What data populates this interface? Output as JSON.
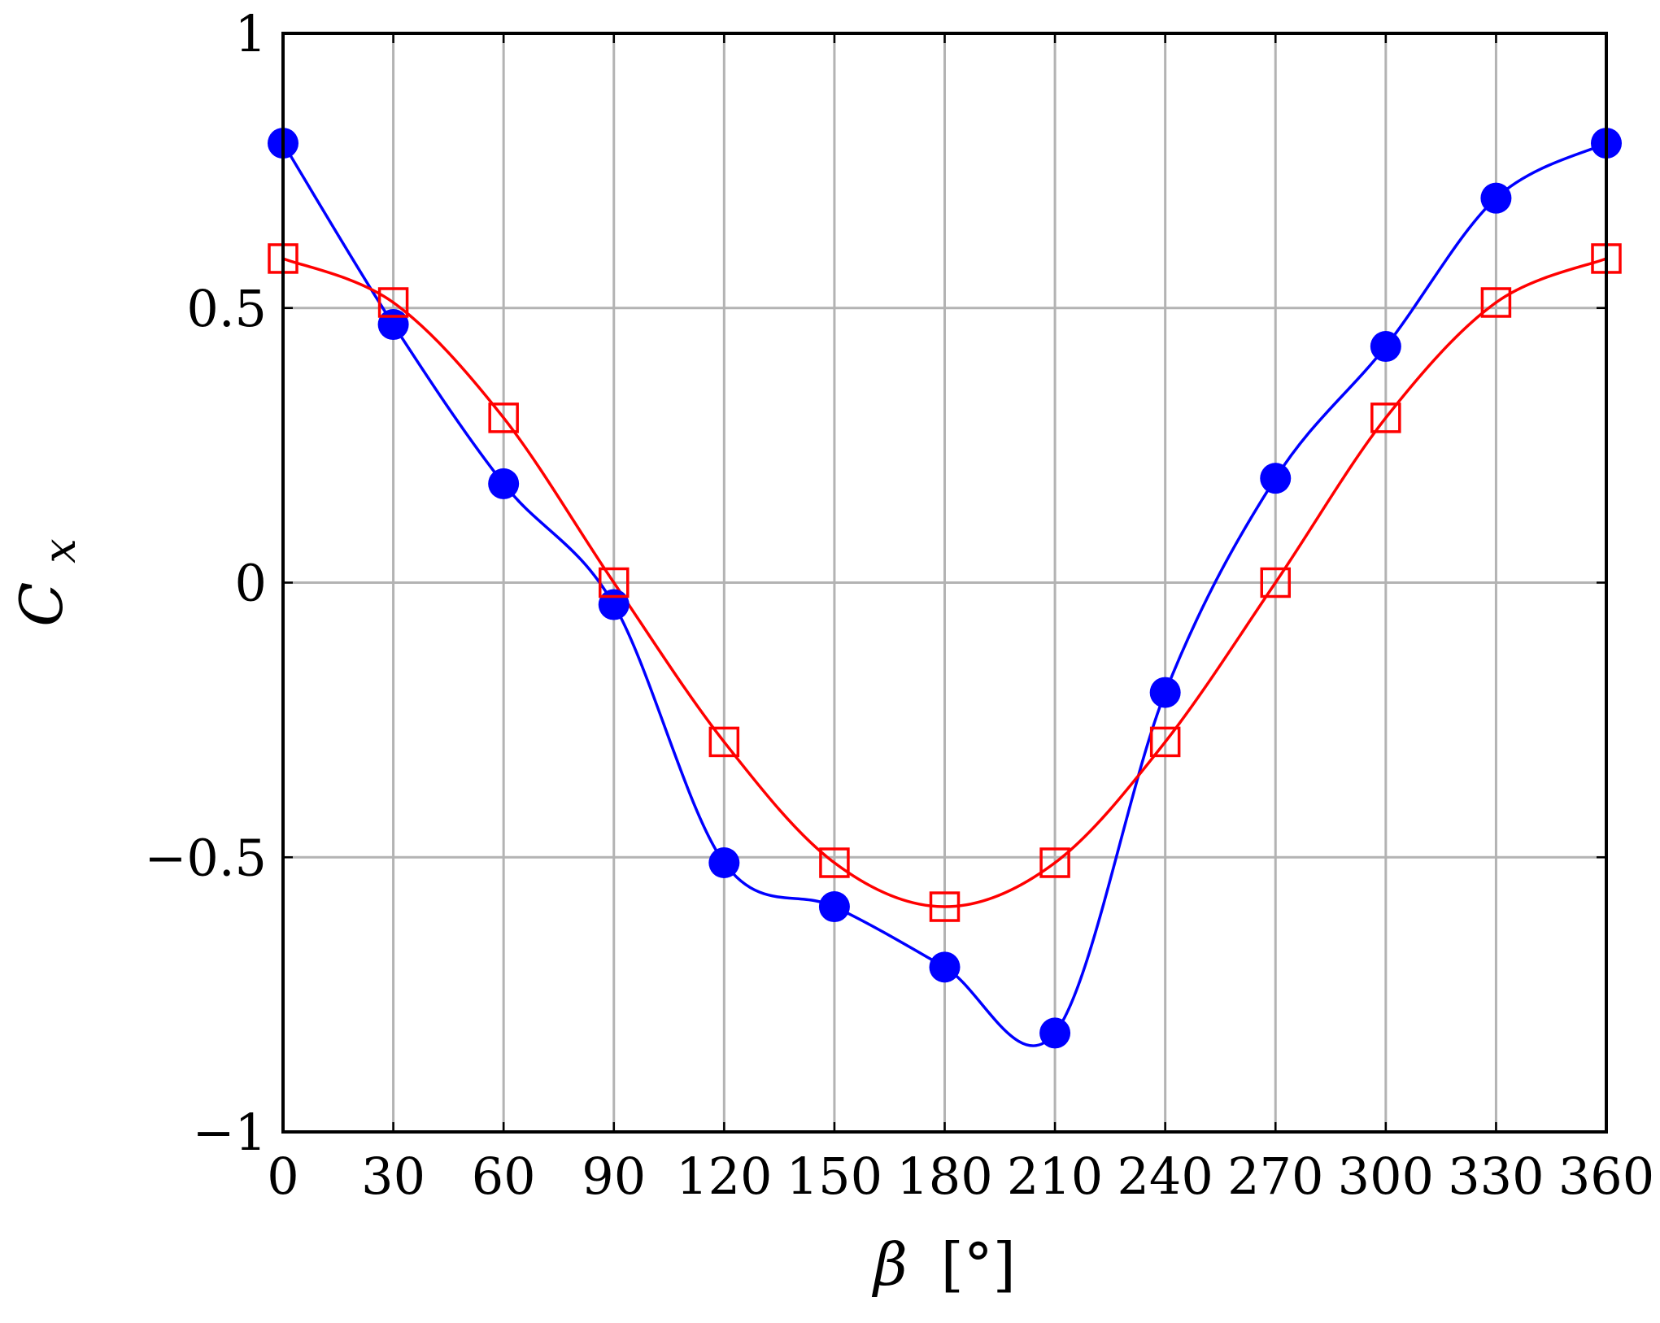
{
  "chart_data": {
    "type": "line",
    "title": "",
    "xlabel": {
      "symbol": "β",
      "unit": "[°]"
    },
    "ylabel": {
      "symbol": "C",
      "subscript": "x"
    },
    "xlim": [
      0,
      360
    ],
    "ylim": [
      -1,
      1
    ],
    "x_ticks": [
      0,
      30,
      60,
      90,
      120,
      150,
      180,
      210,
      240,
      270,
      300,
      330,
      360
    ],
    "x_tick_labels": [
      "0",
      "30",
      "60",
      "90",
      "120",
      "150",
      "180",
      "210",
      "240",
      "270",
      "300",
      "330",
      "360"
    ],
    "y_ticks": [
      -1,
      -0.5,
      0,
      0.5,
      1
    ],
    "y_tick_labels": [
      "−1",
      "−0.5",
      "0",
      "0.5",
      "1"
    ],
    "grid": true,
    "x": [
      0,
      30,
      60,
      90,
      120,
      150,
      180,
      210,
      240,
      270,
      300,
      330,
      360
    ],
    "series": [
      {
        "color": "#0000ff",
        "marker": "filled-circle",
        "smooth": true,
        "values": [
          0.8,
          0.47,
          0.18,
          -0.04,
          -0.51,
          -0.59,
          -0.7,
          -0.82,
          -0.2,
          0.19,
          0.43,
          0.7,
          0.8
        ]
      },
      {
        "color": "#ff0000",
        "marker": "open-square",
        "smooth": true,
        "values": [
          0.59,
          0.51,
          0.3,
          0.0,
          -0.29,
          -0.51,
          -0.59,
          -0.51,
          -0.29,
          0.0,
          0.3,
          0.51,
          0.59
        ]
      }
    ]
  }
}
